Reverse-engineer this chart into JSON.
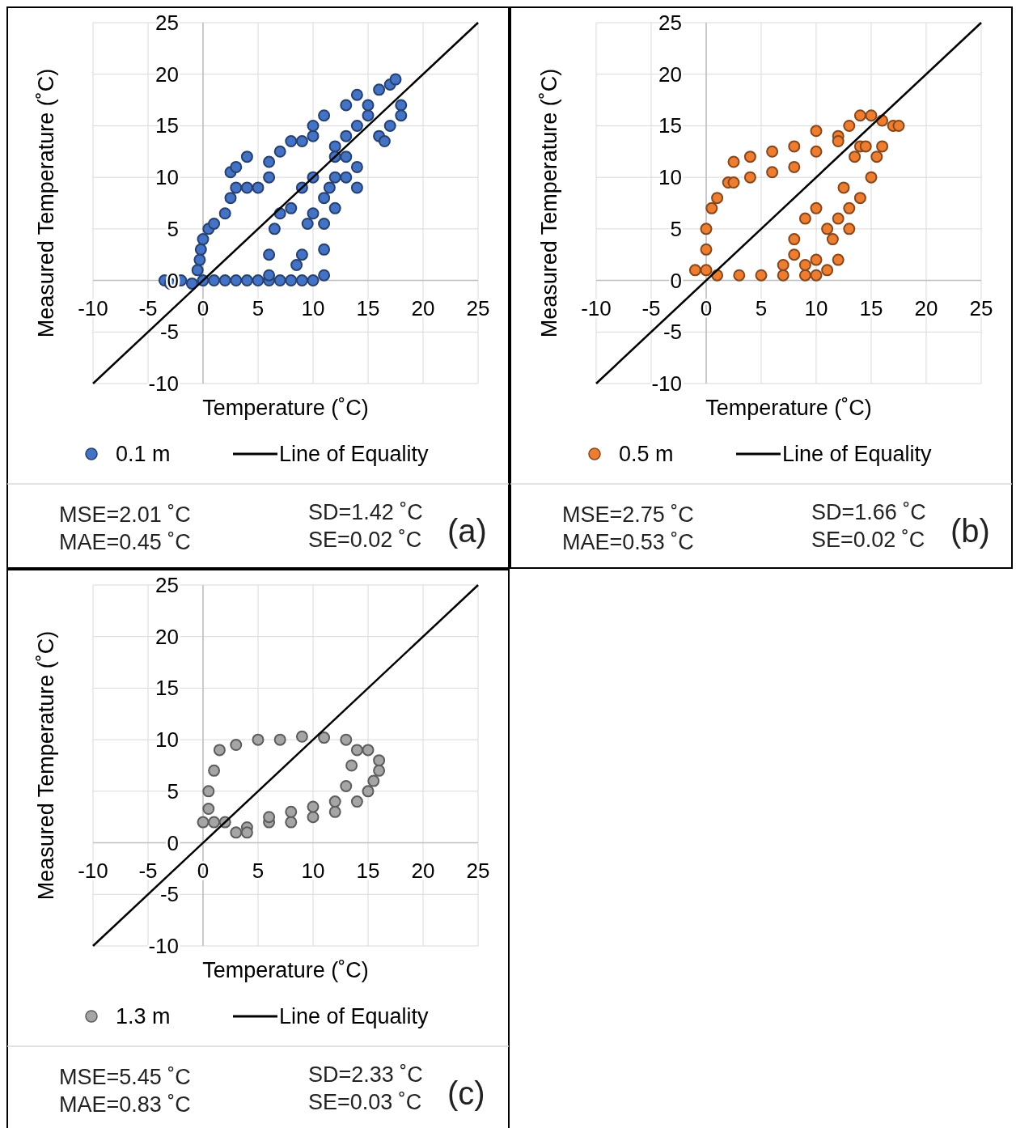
{
  "chart_data": [
    {
      "type": "scatter",
      "xlabel": "Temperature (˚C)",
      "ylabel": "Measured Temperature (˚C)",
      "xlim": [
        -10,
        25
      ],
      "ylim": [
        -10,
        25
      ],
      "xticks": [
        -10,
        -5,
        0,
        5,
        10,
        15,
        20,
        25
      ],
      "yticks": [
        -10,
        -5,
        0,
        5,
        10,
        15,
        20,
        25
      ],
      "grid": true,
      "legend": "bottom",
      "annotations": [
        "MSE=2.01 ˚C",
        "MAE=0.45 ˚C",
        "SD=1.42 ˚C",
        "SE=0.02 ˚C",
        "(a)"
      ],
      "series": [
        {
          "name": "0.1 m",
          "color": "#4472c4",
          "marker": "circle",
          "x": [
            -3.5,
            -3,
            -2,
            -1,
            0,
            -0.5,
            -0.3,
            -0.2,
            0,
            0.5,
            1,
            2,
            2.5,
            3,
            2.5,
            3,
            4,
            4,
            5,
            6,
            6,
            7,
            8,
            9,
            10,
            11,
            10,
            12,
            13,
            12,
            14,
            13,
            14,
            15,
            16,
            17,
            17.5,
            18,
            17,
            16.5,
            18,
            15,
            16,
            1,
            2,
            3,
            4,
            5,
            6,
            7,
            8,
            9,
            10,
            11,
            11,
            6,
            6,
            6.5,
            7,
            8,
            9,
            10,
            9.5,
            9,
            8.5,
            10,
            11,
            11,
            12,
            12,
            13,
            14,
            14,
            11.5,
            13
          ],
          "values": [
            0,
            -0.3,
            0,
            -0.3,
            0,
            1,
            2,
            3,
            4,
            5,
            5.5,
            6.5,
            8,
            9,
            10.5,
            11,
            12,
            9,
            9,
            10,
            11.5,
            12.5,
            13.5,
            13.5,
            14,
            16,
            15,
            13,
            14,
            12,
            15,
            17,
            18,
            16,
            14,
            19,
            19.5,
            17,
            15,
            13.5,
            16,
            17,
            18.5,
            0,
            0,
            0,
            0,
            0,
            0,
            0,
            0,
            0,
            0,
            0.5,
            3,
            0.5,
            2.5,
            5,
            6.5,
            7,
            9,
            10,
            5.5,
            2.5,
            1.5,
            6.5,
            8,
            5.5,
            7,
            10,
            10,
            9,
            11,
            9,
            12
          ]
        },
        {
          "name": "Line of Equality",
          "type": "line",
          "color": "#000000",
          "x": [
            -10,
            25
          ],
          "values": [
            -10,
            25
          ]
        }
      ]
    },
    {
      "type": "scatter",
      "xlabel": "Temperature (˚C)",
      "ylabel": "Measured Temperature (˚C)",
      "xlim": [
        -10,
        25
      ],
      "ylim": [
        -10,
        25
      ],
      "xticks": [
        -10,
        -5,
        0,
        5,
        10,
        15,
        20,
        25
      ],
      "yticks": [
        -10,
        -5,
        0,
        5,
        10,
        15,
        20,
        25
      ],
      "grid": true,
      "legend": "bottom",
      "annotations": [
        "MSE=2.75 ˚C",
        "MAE=0.53 ˚C",
        "SD=1.66 ˚C",
        "SE=0.02 ˚C",
        "(b)"
      ],
      "series": [
        {
          "name": "0.5 m",
          "color": "#ed7d31",
          "marker": "circle",
          "x": [
            -1,
            0,
            0,
            0,
            0.5,
            1,
            2,
            2.5,
            4,
            6,
            8,
            10,
            12,
            13,
            14,
            15,
            16,
            17,
            17.5,
            16,
            14,
            12,
            10,
            8,
            6,
            4,
            2.5,
            1,
            3,
            5,
            7,
            9,
            10,
            7,
            8,
            9,
            10,
            11,
            12,
            13,
            14,
            15,
            15.5,
            13,
            12,
            11,
            10,
            9,
            8,
            11.5,
            12.5,
            13.5,
            14.5
          ],
          "values": [
            1,
            1,
            3,
            5,
            7,
            8,
            9.5,
            11.5,
            12,
            12.5,
            13,
            14.5,
            14,
            15,
            16,
            16,
            15.5,
            15,
            15,
            13,
            13,
            13.5,
            12.5,
            11,
            10.5,
            10,
            9.5,
            0.5,
            0.5,
            0.5,
            0.5,
            0.5,
            0.5,
            1.5,
            2.5,
            1.5,
            2,
            1,
            2,
            5,
            8,
            10,
            12,
            7,
            6,
            5,
            7,
            6,
            4,
            4,
            9,
            12,
            13
          ]
        },
        {
          "name": "Line of Equality",
          "type": "line",
          "color": "#000000",
          "x": [
            -10,
            25
          ],
          "values": [
            -10,
            25
          ]
        }
      ]
    },
    {
      "type": "scatter",
      "xlabel": "Temperature (˚C)",
      "ylabel": "Measured Temperature (˚C)",
      "xlim": [
        -10,
        25
      ],
      "ylim": [
        -10,
        25
      ],
      "xticks": [
        -10,
        -5,
        0,
        5,
        10,
        15,
        20,
        25
      ],
      "yticks": [
        -10,
        -5,
        0,
        5,
        10,
        15,
        20,
        25
      ],
      "grid": true,
      "legend": "bottom",
      "annotations": [
        "MSE=5.45 ˚C",
        "MAE=0.83 ˚C",
        "SD=2.33 ˚C",
        "SE=0.03 ˚C",
        "(c)"
      ],
      "series": [
        {
          "name": "1.3 m",
          "color": "#a5a5a5",
          "marker": "circle",
          "x": [
            0,
            0.5,
            0.5,
            1,
            1.5,
            3,
            5,
            7,
            9,
            11,
            13,
            15,
            16,
            16,
            15,
            14,
            12,
            10,
            8,
            6,
            4,
            3,
            1,
            2,
            4,
            13.5,
            13,
            12,
            10,
            8,
            6,
            14,
            15.5
          ],
          "values": [
            2,
            3.3,
            5,
            7,
            9,
            9.5,
            10,
            10,
            10.3,
            10.2,
            10,
            9,
            8,
            7,
            5,
            4,
            3,
            2.5,
            2,
            2,
            1.5,
            1,
            2,
            2,
            1,
            7.5,
            5.5,
            4,
            3.5,
            3,
            2.5,
            9,
            6
          ]
        },
        {
          "name": "Line of Equality",
          "type": "line",
          "color": "#000000",
          "x": [
            -10,
            25
          ],
          "values": [
            -10,
            25
          ]
        }
      ]
    }
  ]
}
